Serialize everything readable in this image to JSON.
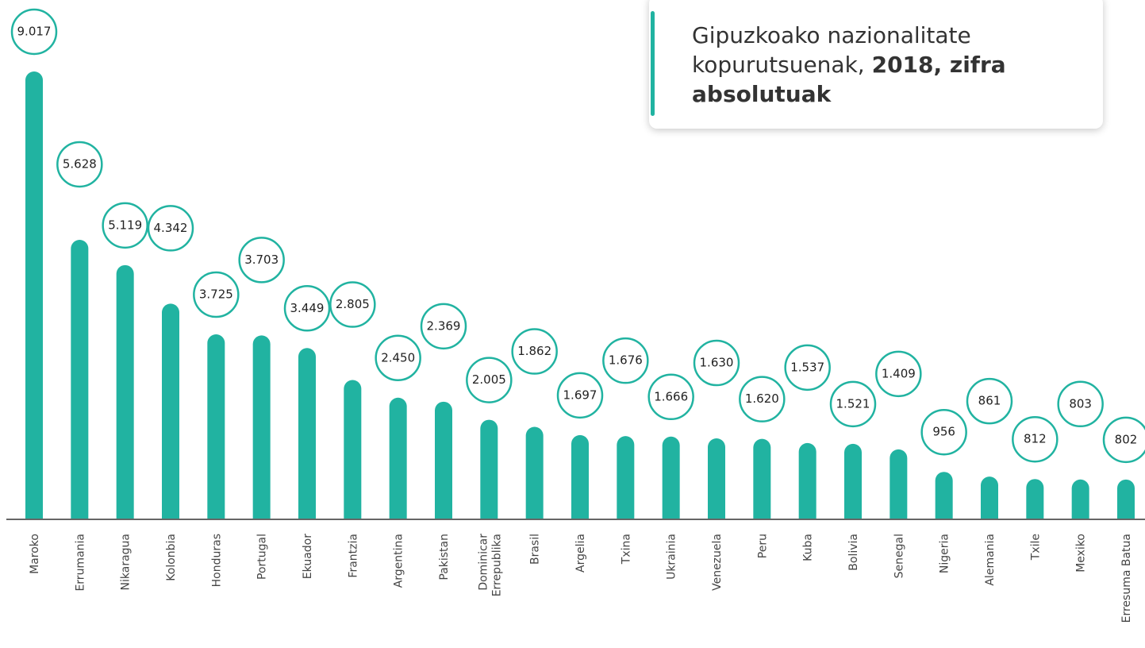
{
  "chart_data": {
    "type": "bar",
    "title": "Gipuzkoako nazionalitate kopurutsuenak,",
    "title_bold": "2018, zifra absolutuak",
    "color": "#21b3a1",
    "categories": [
      "Maroko",
      "Errumania",
      "Nikaragua",
      "Kolonbia",
      "Honduras",
      "Portugal",
      "Ekuador",
      "Frantzia",
      "Argentina",
      "Pakistan",
      "Dominicar Errepublika",
      "Brasil",
      "Argelia",
      "Txina",
      "Ukrainia",
      "Venezuela",
      "Peru",
      "Kuba",
      "Bolivia",
      "Senegal",
      "Nigeria",
      "Alemania",
      "Txile",
      "Mexiko",
      "Erresuma Batua"
    ],
    "values": [
      9017,
      5628,
      5119,
      4342,
      3725,
      3703,
      3449,
      2805,
      2450,
      2369,
      2005,
      1862,
      1697,
      1676,
      1666,
      1630,
      1620,
      1537,
      1521,
      1409,
      956,
      861,
      812,
      803,
      802
    ],
    "value_labels": [
      "9.017",
      "5.628",
      "5.119",
      "4.342",
      "3.725",
      "3.703",
      "3.449",
      "2.805",
      "2.450",
      "2.369",
      "2.005",
      "1.862",
      "1.697",
      "1.676",
      "1.666",
      "1.630",
      "1.620",
      "1.537",
      "1.521",
      "1.409",
      "956",
      "861",
      "812",
      "803",
      "802"
    ]
  }
}
